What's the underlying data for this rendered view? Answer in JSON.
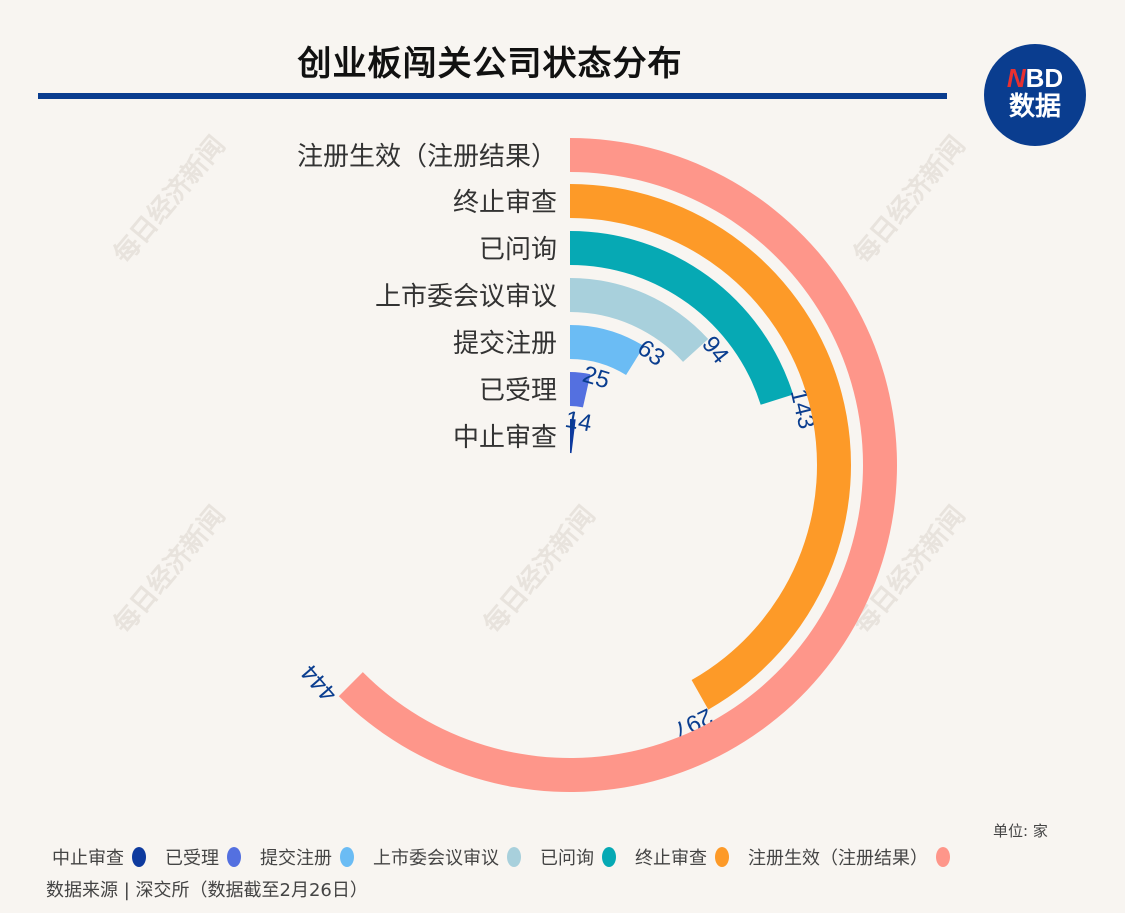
{
  "title": "创业板闯关公司状态分布",
  "logo": {
    "line1_accent": "N",
    "line1_rest": "BD",
    "line2": "数据"
  },
  "watermark": "每日经济新闻",
  "unit": "单位: 家",
  "source": "数据来源 | 深交所（数据截至2月26日）",
  "colors": {
    "rule": "#0a3d8f",
    "label": "#0a3d8f"
  },
  "chart_data": {
    "type": "radial_bar",
    "title": "创业板闯关公司状态分布",
    "unit": "家",
    "categories": [
      "中止审查",
      "已受理",
      "提交注册",
      "上市委会议审议",
      "已问询",
      "终止审查",
      "注册生效（注册结果）"
    ],
    "values": [
      14,
      25,
      63,
      94,
      143,
      297,
      444
    ],
    "colors": [
      "#0e3a9e",
      "#5470e0",
      "#6bbcf4",
      "#a8d0dc",
      "#06a9b4",
      "#fd9a28",
      "#fe968a"
    ],
    "legend_position": "bottom",
    "grid": false
  },
  "legend": [
    {
      "label": "中止审查",
      "color": "#0e3a9e"
    },
    {
      "label": "已受理",
      "color": "#5470e0"
    },
    {
      "label": "提交注册",
      "color": "#6bbcf4"
    },
    {
      "label": "上市委会议审议",
      "color": "#a8d0dc"
    },
    {
      "label": "已问询",
      "color": "#06a9b4"
    },
    {
      "label": "终止审查",
      "color": "#fd9a28"
    },
    {
      "label": "注册生效（注册结果）",
      "color": "#fe968a"
    }
  ]
}
